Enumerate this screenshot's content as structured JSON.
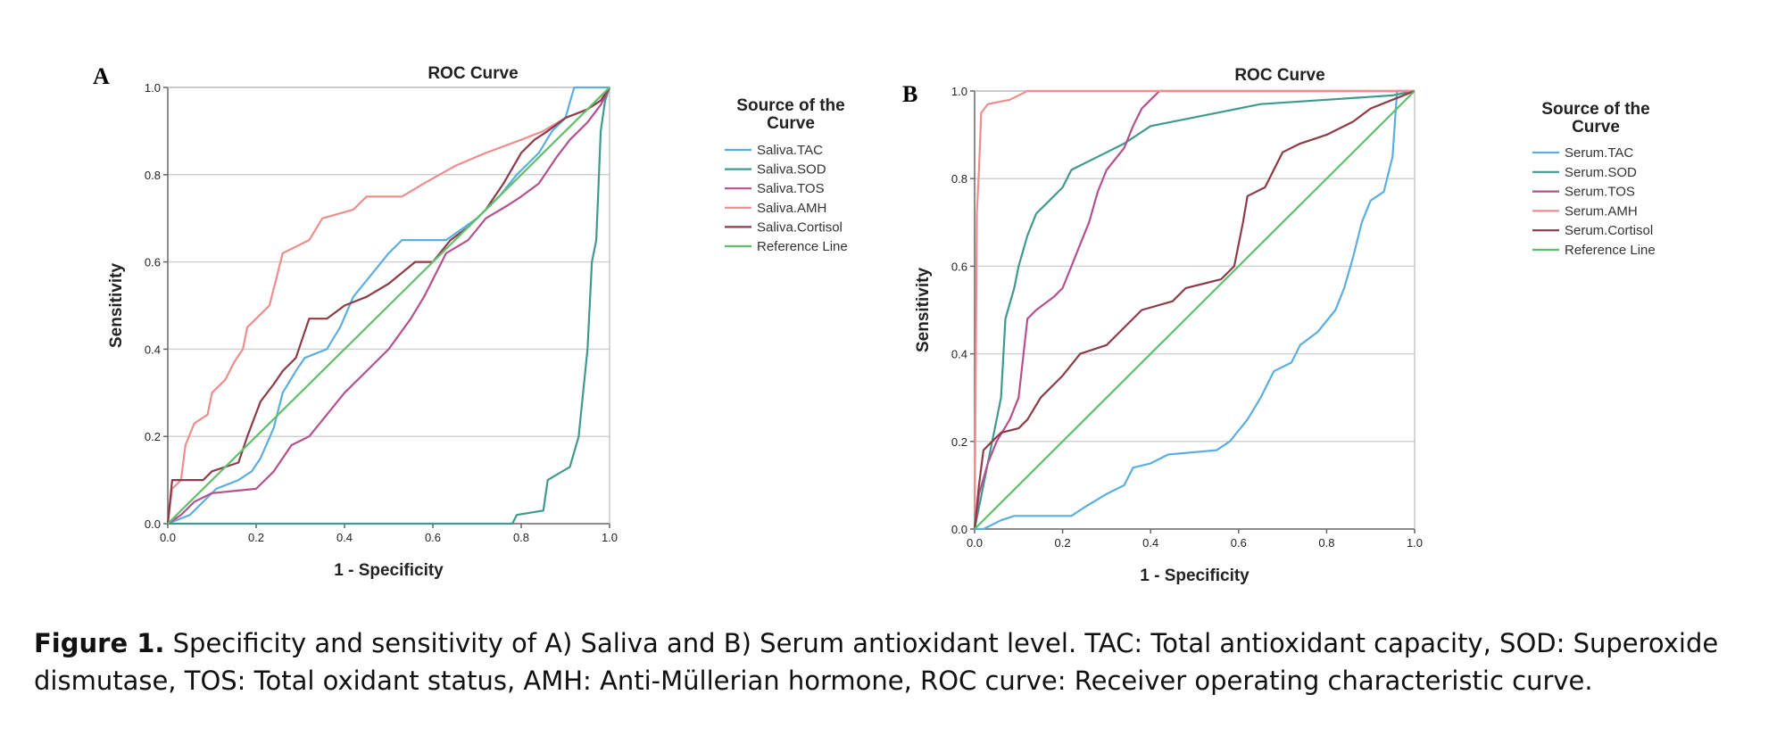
{
  "chart_data": [
    {
      "type": "line",
      "panel_label": "A",
      "title": "ROC Curve",
      "xlabel": "1 - Specificity",
      "ylabel": "Sensitivity",
      "xlim": [
        0,
        1
      ],
      "ylim": [
        0,
        1
      ],
      "x_ticks": [
        "0.0",
        "0.2",
        "0.4",
        "0.6",
        "0.8",
        "1.0"
      ],
      "y_ticks": [
        "0.0",
        "0.2",
        "0.4",
        "0.6",
        "0.8",
        "1.0"
      ],
      "grid": "horizontal",
      "legend_title": "Source of the Curve",
      "series": [
        {
          "name": "Saliva.TAC",
          "color": "#5aaee0",
          "points": [
            [
              0,
              0
            ],
            [
              0.05,
              0.02
            ],
            [
              0.08,
              0.05
            ],
            [
              0.11,
              0.08
            ],
            [
              0.16,
              0.1
            ],
            [
              0.19,
              0.12
            ],
            [
              0.21,
              0.15
            ],
            [
              0.24,
              0.22
            ],
            [
              0.26,
              0.3
            ],
            [
              0.29,
              0.35
            ],
            [
              0.31,
              0.38
            ],
            [
              0.36,
              0.4
            ],
            [
              0.39,
              0.45
            ],
            [
              0.42,
              0.52
            ],
            [
              0.46,
              0.57
            ],
            [
              0.5,
              0.62
            ],
            [
              0.53,
              0.65
            ],
            [
              0.63,
              0.65
            ],
            [
              0.7,
              0.7
            ],
            [
              0.75,
              0.75
            ],
            [
              0.79,
              0.8
            ],
            [
              0.81,
              0.82
            ],
            [
              0.84,
              0.85
            ],
            [
              0.87,
              0.9
            ],
            [
              0.9,
              0.93
            ],
            [
              0.92,
              1
            ],
            [
              0.98,
              1
            ],
            [
              1,
              1
            ]
          ]
        },
        {
          "name": "Saliva.SOD",
          "color": "#3f9a8c",
          "points": [
            [
              0,
              0
            ],
            [
              0.78,
              0
            ],
            [
              0.79,
              0.02
            ],
            [
              0.85,
              0.03
            ],
            [
              0.86,
              0.1
            ],
            [
              0.91,
              0.13
            ],
            [
              0.93,
              0.2
            ],
            [
              0.94,
              0.3
            ],
            [
              0.95,
              0.4
            ],
            [
              0.96,
              0.6
            ],
            [
              0.97,
              0.65
            ],
            [
              0.98,
              0.9
            ],
            [
              0.99,
              0.97
            ],
            [
              1,
              1
            ]
          ]
        },
        {
          "name": "Saliva.TOS",
          "color": "#b5508f",
          "points": [
            [
              0,
              0
            ],
            [
              0.03,
              0.02
            ],
            [
              0.06,
              0.05
            ],
            [
              0.1,
              0.07
            ],
            [
              0.2,
              0.08
            ],
            [
              0.24,
              0.12
            ],
            [
              0.28,
              0.18
            ],
            [
              0.32,
              0.2
            ],
            [
              0.36,
              0.25
            ],
            [
              0.4,
              0.3
            ],
            [
              0.45,
              0.35
            ],
            [
              0.5,
              0.4
            ],
            [
              0.55,
              0.47
            ],
            [
              0.58,
              0.52
            ],
            [
              0.6,
              0.56
            ],
            [
              0.63,
              0.62
            ],
            [
              0.68,
              0.65
            ],
            [
              0.72,
              0.7
            ],
            [
              0.77,
              0.73
            ],
            [
              0.8,
              0.75
            ],
            [
              0.84,
              0.78
            ],
            [
              0.88,
              0.84
            ],
            [
              0.91,
              0.88
            ],
            [
              0.95,
              0.92
            ],
            [
              0.98,
              0.96
            ],
            [
              1,
              1
            ]
          ]
        },
        {
          "name": "Saliva.AMH",
          "color": "#ef8c8c",
          "points": [
            [
              0,
              0
            ],
            [
              0.01,
              0.08
            ],
            [
              0.03,
              0.1
            ],
            [
              0.04,
              0.18
            ],
            [
              0.06,
              0.23
            ],
            [
              0.09,
              0.25
            ],
            [
              0.1,
              0.3
            ],
            [
              0.13,
              0.33
            ],
            [
              0.15,
              0.37
            ],
            [
              0.17,
              0.4
            ],
            [
              0.18,
              0.45
            ],
            [
              0.2,
              0.47
            ],
            [
              0.23,
              0.5
            ],
            [
              0.25,
              0.58
            ],
            [
              0.26,
              0.62
            ],
            [
              0.32,
              0.65
            ],
            [
              0.35,
              0.7
            ],
            [
              0.42,
              0.72
            ],
            [
              0.45,
              0.75
            ],
            [
              0.53,
              0.75
            ],
            [
              0.58,
              0.78
            ],
            [
              0.65,
              0.82
            ],
            [
              0.72,
              0.85
            ],
            [
              0.8,
              0.88
            ],
            [
              0.85,
              0.9
            ],
            [
              0.9,
              0.93
            ],
            [
              0.95,
              0.95
            ],
            [
              0.98,
              0.98
            ],
            [
              1,
              1
            ]
          ]
        },
        {
          "name": "Saliva.Cortisol",
          "color": "#8c3c48",
          "points": [
            [
              0,
              0
            ],
            [
              0.01,
              0.1
            ],
            [
              0.08,
              0.1
            ],
            [
              0.1,
              0.12
            ],
            [
              0.16,
              0.14
            ],
            [
              0.18,
              0.2
            ],
            [
              0.21,
              0.28
            ],
            [
              0.24,
              0.32
            ],
            [
              0.26,
              0.35
            ],
            [
              0.29,
              0.38
            ],
            [
              0.32,
              0.47
            ],
            [
              0.36,
              0.47
            ],
            [
              0.4,
              0.5
            ],
            [
              0.45,
              0.52
            ],
            [
              0.5,
              0.55
            ],
            [
              0.56,
              0.6
            ],
            [
              0.6,
              0.6
            ],
            [
              0.64,
              0.65
            ],
            [
              0.68,
              0.68
            ],
            [
              0.72,
              0.72
            ],
            [
              0.76,
              0.78
            ],
            [
              0.8,
              0.85
            ],
            [
              0.83,
              0.88
            ],
            [
              0.86,
              0.9
            ],
            [
              0.9,
              0.93
            ],
            [
              0.95,
              0.95
            ],
            [
              0.98,
              0.97
            ],
            [
              1,
              1
            ]
          ]
        },
        {
          "name": "Reference Line",
          "color": "#5fbf6a",
          "points": [
            [
              0,
              0
            ],
            [
              1,
              1
            ]
          ]
        }
      ]
    },
    {
      "type": "line",
      "panel_label": "B",
      "title": "ROC Curve",
      "xlabel": "1 - Specificity",
      "ylabel": "Sensitivity",
      "xlim": [
        0,
        1
      ],
      "ylim": [
        0,
        1
      ],
      "x_ticks": [
        "0.0",
        "0.2",
        "0.4",
        "0.6",
        "0.8",
        "1.0"
      ],
      "y_ticks": [
        "0.0",
        "0.2",
        "0.4",
        "0.6",
        "0.8",
        "1.0"
      ],
      "grid": "horizontal",
      "legend_title": "Source of the Curve",
      "series": [
        {
          "name": "Serum.TAC",
          "color": "#5aaee0",
          "points": [
            [
              0,
              0
            ],
            [
              0.02,
              0
            ],
            [
              0.06,
              0.02
            ],
            [
              0.09,
              0.03
            ],
            [
              0.22,
              0.03
            ],
            [
              0.25,
              0.05
            ],
            [
              0.3,
              0.08
            ],
            [
              0.34,
              0.1
            ],
            [
              0.36,
              0.14
            ],
            [
              0.4,
              0.15
            ],
            [
              0.44,
              0.17
            ],
            [
              0.55,
              0.18
            ],
            [
              0.58,
              0.2
            ],
            [
              0.62,
              0.25
            ],
            [
              0.65,
              0.3
            ],
            [
              0.68,
              0.36
            ],
            [
              0.72,
              0.38
            ],
            [
              0.74,
              0.42
            ],
            [
              0.78,
              0.45
            ],
            [
              0.82,
              0.5
            ],
            [
              0.84,
              0.55
            ],
            [
              0.86,
              0.62
            ],
            [
              0.88,
              0.7
            ],
            [
              0.9,
              0.75
            ],
            [
              0.93,
              0.77
            ],
            [
              0.95,
              0.85
            ],
            [
              0.96,
              1
            ],
            [
              1,
              1
            ]
          ]
        },
        {
          "name": "Serum.SOD",
          "color": "#3f9a8c",
          "points": [
            [
              0,
              0
            ],
            [
              0.01,
              0.05
            ],
            [
              0.02,
              0.1
            ],
            [
              0.04,
              0.2
            ],
            [
              0.06,
              0.3
            ],
            [
              0.07,
              0.48
            ],
            [
              0.09,
              0.55
            ],
            [
              0.1,
              0.6
            ],
            [
              0.12,
              0.67
            ],
            [
              0.14,
              0.72
            ],
            [
              0.16,
              0.74
            ],
            [
              0.2,
              0.78
            ],
            [
              0.22,
              0.82
            ],
            [
              0.28,
              0.85
            ],
            [
              0.34,
              0.88
            ],
            [
              0.4,
              0.92
            ],
            [
              0.55,
              0.95
            ],
            [
              0.65,
              0.97
            ],
            [
              0.8,
              0.98
            ],
            [
              0.95,
              0.99
            ],
            [
              1,
              1
            ]
          ]
        },
        {
          "name": "Serum.TOS",
          "color": "#b5508f",
          "points": [
            [
              0,
              0
            ],
            [
              0.01,
              0.08
            ],
            [
              0.03,
              0.15
            ],
            [
              0.05,
              0.2
            ],
            [
              0.08,
              0.25
            ],
            [
              0.1,
              0.3
            ],
            [
              0.12,
              0.48
            ],
            [
              0.14,
              0.5
            ],
            [
              0.18,
              0.53
            ],
            [
              0.2,
              0.55
            ],
            [
              0.22,
              0.6
            ],
            [
              0.24,
              0.65
            ],
            [
              0.26,
              0.7
            ],
            [
              0.28,
              0.77
            ],
            [
              0.3,
              0.82
            ],
            [
              0.34,
              0.87
            ],
            [
              0.36,
              0.92
            ],
            [
              0.38,
              0.96
            ],
            [
              0.4,
              0.98
            ],
            [
              0.42,
              1
            ],
            [
              1,
              1
            ]
          ]
        },
        {
          "name": "Serum.AMH",
          "color": "#ef8c8c",
          "points": [
            [
              0,
              0
            ],
            [
              0.005,
              0.72
            ],
            [
              0.01,
              0.82
            ],
            [
              0.015,
              0.95
            ],
            [
              0.03,
              0.97
            ],
            [
              0.08,
              0.98
            ],
            [
              0.12,
              1
            ],
            [
              1,
              1
            ]
          ]
        },
        {
          "name": "Serum.Cortisol",
          "color": "#8c3c48",
          "points": [
            [
              0,
              0
            ],
            [
              0.01,
              0.1
            ],
            [
              0.02,
              0.18
            ],
            [
              0.04,
              0.2
            ],
            [
              0.06,
              0.22
            ],
            [
              0.1,
              0.23
            ],
            [
              0.12,
              0.25
            ],
            [
              0.15,
              0.3
            ],
            [
              0.2,
              0.35
            ],
            [
              0.24,
              0.4
            ],
            [
              0.3,
              0.42
            ],
            [
              0.34,
              0.46
            ],
            [
              0.38,
              0.5
            ],
            [
              0.45,
              0.52
            ],
            [
              0.48,
              0.55
            ],
            [
              0.52,
              0.56
            ],
            [
              0.56,
              0.57
            ],
            [
              0.59,
              0.6
            ],
            [
              0.61,
              0.7
            ],
            [
              0.62,
              0.76
            ],
            [
              0.66,
              0.78
            ],
            [
              0.68,
              0.82
            ],
            [
              0.7,
              0.86
            ],
            [
              0.74,
              0.88
            ],
            [
              0.8,
              0.9
            ],
            [
              0.86,
              0.93
            ],
            [
              0.9,
              0.96
            ],
            [
              0.95,
              0.98
            ],
            [
              1,
              1
            ]
          ]
        },
        {
          "name": "Reference Line",
          "color": "#5fbf6a",
          "points": [
            [
              0,
              0
            ],
            [
              1,
              1
            ]
          ]
        }
      ]
    }
  ],
  "caption": {
    "label": "Figure 1.",
    "text": " Specificity and sensitivity of A) Saliva and B) Serum antioxidant level. TAC: Total antioxidant capacity, SOD: Superoxide dismutase, TOS: Total oxidant status, AMH: Anti-Müllerian hormone, ROC curve: Receiver operating characteristic curve."
  }
}
